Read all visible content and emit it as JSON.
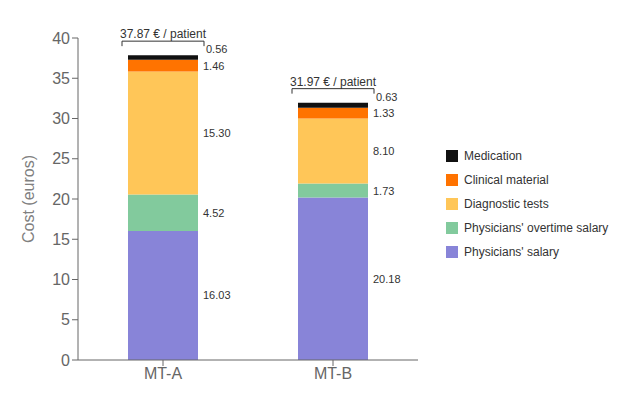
{
  "chart_data": {
    "type": "bar",
    "stacked": true,
    "data_labels": true,
    "grid": false,
    "legend": "right",
    "categories": [
      "MT-A",
      "MT-B"
    ],
    "series": [
      {
        "name": "Physicians' salary",
        "color": "#8884d8",
        "values": [
          16.03,
          20.18
        ],
        "value_labels": [
          "16.03",
          "20.18"
        ]
      },
      {
        "name": "Physicians' overtime salary",
        "color": "#82ca9d",
        "values": [
          4.52,
          1.73
        ],
        "value_labels": [
          "4.52",
          "1.73"
        ]
      },
      {
        "name": "Diagnostic tests",
        "color": "#ffc658",
        "values": [
          15.3,
          8.1
        ],
        "value_labels": [
          "15.30",
          "8.10"
        ]
      },
      {
        "name": "Clinical material",
        "color": "#ff7300",
        "values": [
          1.46,
          1.33
        ],
        "value_labels": [
          "1.46",
          "1.33"
        ]
      },
      {
        "name": "Medication",
        "color": "#111111",
        "values": [
          0.56,
          0.63
        ],
        "value_labels": [
          "0.56",
          "0.63"
        ]
      }
    ],
    "ylabel": "Cost (euros)",
    "ylim": [
      0,
      40
    ],
    "yticks": [
      0,
      5,
      10,
      15,
      20,
      25,
      30,
      35,
      40
    ],
    "annotations": [
      {
        "category": "MT-A",
        "text": "37.87 € / patient"
      },
      {
        "category": "MT-B",
        "text": "31.97 € / patient"
      }
    ]
  }
}
